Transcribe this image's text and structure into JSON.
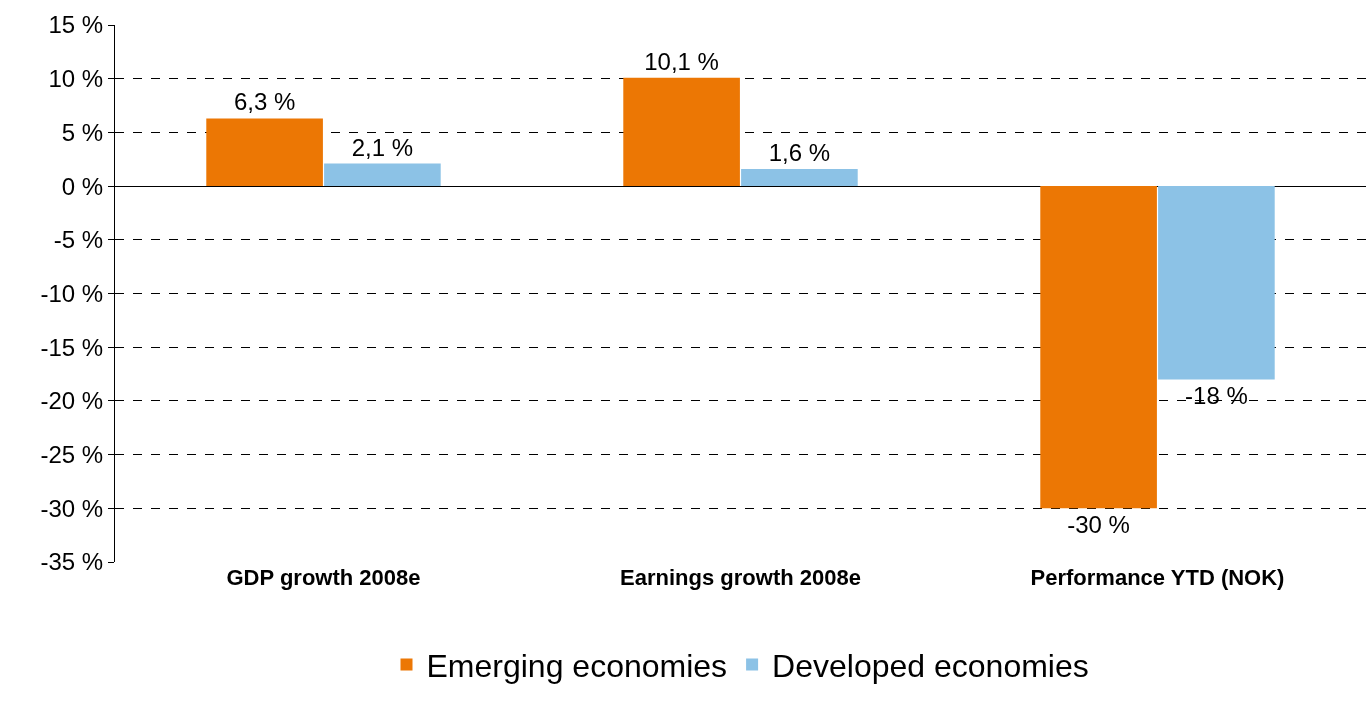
{
  "chart_data": {
    "type": "bar",
    "categories": [
      "GDP growth 2008e",
      "Earnings growth 2008e",
      "Performance YTD (NOK)"
    ],
    "series": [
      {
        "name": "Emerging economies",
        "color": "#ec7704",
        "values": [
          6.3,
          10.1,
          -30
        ],
        "value_labels": [
          "6,3 %",
          "10,1 %",
          "-30 %"
        ]
      },
      {
        "name": "Developed economies",
        "color": "#8cc2e6",
        "values": [
          2.1,
          1.6,
          -18
        ],
        "value_labels": [
          "2,1 %",
          "1,6 %",
          "-18 %"
        ]
      }
    ],
    "ylim": [
      -35,
      15
    ],
    "yticks": [
      {
        "value": -35,
        "label": "-35 %"
      },
      {
        "value": -30,
        "label": "-30 %"
      },
      {
        "value": -25,
        "label": "-25 %"
      },
      {
        "value": -20,
        "label": "-20 %"
      },
      {
        "value": -15,
        "label": "-15 %"
      },
      {
        "value": -10,
        "label": "-10 %"
      },
      {
        "value": -5,
        "label": "-5 %"
      },
      {
        "value": 0,
        "label": "0 %"
      },
      {
        "value": 5,
        "label": "5 %"
      },
      {
        "value": 10,
        "label": "10 %"
      },
      {
        "value": 15,
        "label": "15 %"
      }
    ],
    "grid": "y",
    "legend": "bottom"
  }
}
